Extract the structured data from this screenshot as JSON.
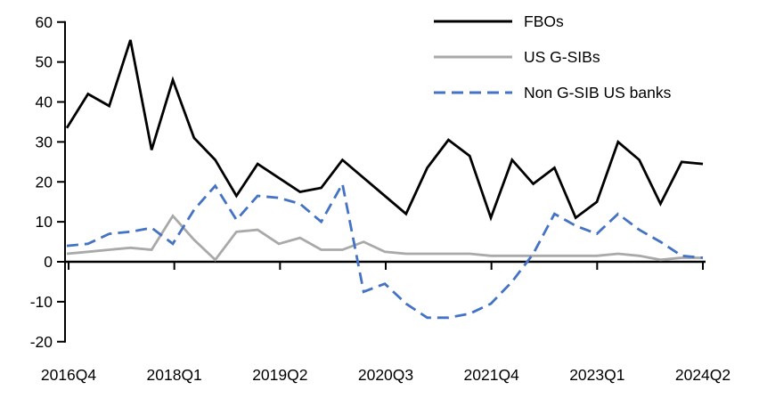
{
  "chart_data": {
    "type": "line",
    "title": "",
    "xlabel": "",
    "ylabel": "",
    "ylim": [
      -20,
      60
    ],
    "grid": "off",
    "legend_position": "top-right",
    "y_ticks": [
      60,
      50,
      40,
      30,
      20,
      10,
      0,
      -10,
      -20
    ],
    "x_axis_tick_labels": [
      "2016Q4",
      "2018Q1",
      "2019Q2",
      "2020Q3",
      "2021Q4",
      "2023Q1",
      "2024Q2"
    ],
    "x_categories": [
      "2016Q4",
      "2017Q1",
      "2017Q2",
      "2017Q3",
      "2017Q4",
      "2018Q1",
      "2018Q2",
      "2018Q3",
      "2018Q4",
      "2019Q1",
      "2019Q2",
      "2019Q3",
      "2019Q4",
      "2020Q1",
      "2020Q2",
      "2020Q3",
      "2020Q4",
      "2021Q1",
      "2021Q2",
      "2021Q3",
      "2021Q4",
      "2022Q1",
      "2022Q2",
      "2022Q3",
      "2022Q4",
      "2023Q1",
      "2023Q2",
      "2023Q3",
      "2023Q4",
      "2024Q1",
      "2024Q2"
    ],
    "series": [
      {
        "name": "FBOs",
        "color": "#000000",
        "style": "solid",
        "values": [
          33.5,
          42,
          39,
          55.5,
          28,
          45.5,
          31,
          25.5,
          16.5,
          24.5,
          21,
          17.5,
          18.5,
          25.5,
          21,
          16.5,
          12,
          23.5,
          30.5,
          26.5,
          11,
          25.5,
          19.5,
          23.5,
          11,
          15,
          30,
          25.5,
          14.5,
          25,
          24.5
        ]
      },
      {
        "name": "US G-SIBs",
        "color": "#A9A9A9",
        "style": "solid",
        "values": [
          2,
          2.5,
          3,
          3.5,
          3,
          11.5,
          5.5,
          0.5,
          7.5,
          8,
          4.5,
          6,
          3,
          3,
          5,
          2.5,
          2,
          2,
          2,
          2,
          1.5,
          1.5,
          1.5,
          1.5,
          1.5,
          1.5,
          2,
          1.5,
          0.5,
          1,
          1
        ]
      },
      {
        "name": "Non G-SIB US banks",
        "color": "#4472C4",
        "style": "dashed",
        "values": [
          4,
          4.5,
          7,
          7.5,
          8.5,
          4.5,
          13,
          19,
          10.5,
          16.5,
          16,
          14.5,
          10,
          19.5,
          -7.5,
          -5.5,
          -10.5,
          -14,
          -14,
          -13,
          -10.5,
          -5,
          2,
          12,
          9,
          7,
          12,
          8,
          5,
          1.5,
          1
        ]
      }
    ]
  },
  "colors": {
    "axis": "#000000",
    "background": "#FFFFFF",
    "accent_blue": "#4472C4",
    "accent_gray": "#A9A9A9"
  }
}
